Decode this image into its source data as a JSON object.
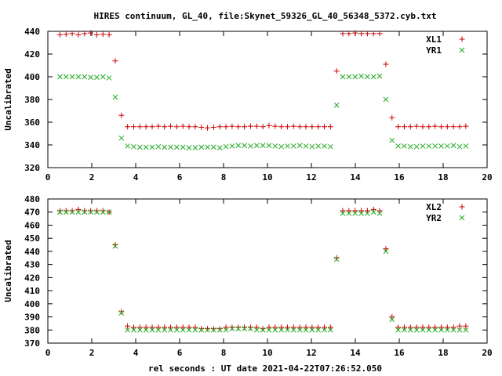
{
  "title": "HIRES continuum, GL_40, file:Skynet_59326_GL_40_56348_5372.cyb.txt",
  "xlabel": "rel seconds : UT date 2021-04-22T07:26:52.050",
  "colors": {
    "plus": "#cc0000",
    "cross": "#22aa22",
    "axis": "#000000"
  },
  "chart_data": [
    {
      "type": "scatter",
      "ylabel": "Uncalibrated",
      "xlim": [
        0,
        20
      ],
      "ylim": [
        320,
        440
      ],
      "xticks": [
        "0",
        "2",
        "4",
        "6",
        "8",
        "10",
        "12",
        "14",
        "16",
        "18",
        "20"
      ],
      "yticks": [
        "320",
        "340",
        "360",
        "380",
        "400",
        "420",
        "440"
      ],
      "legend_position": "top-right",
      "x": [
        0.55,
        0.83,
        1.11,
        1.39,
        1.67,
        1.95,
        2.23,
        2.51,
        2.79,
        3.07,
        3.35,
        3.63,
        3.91,
        4.19,
        4.47,
        4.75,
        5.03,
        5.31,
        5.59,
        5.87,
        6.15,
        6.43,
        6.71,
        6.99,
        7.27,
        7.55,
        7.83,
        8.11,
        8.39,
        8.67,
        8.95,
        9.23,
        9.51,
        9.79,
        10.07,
        10.35,
        10.63,
        10.91,
        11.19,
        11.47,
        11.75,
        12.03,
        12.31,
        12.59,
        12.87,
        13.15,
        13.43,
        13.71,
        13.99,
        14.27,
        14.55,
        14.83,
        15.11,
        15.39,
        15.67,
        15.95,
        16.23,
        16.51,
        16.79,
        17.07,
        17.35,
        17.63,
        17.91,
        18.19,
        18.47,
        18.75,
        19.03
      ],
      "series": [
        {
          "name": "XL1",
          "marker": "plus",
          "values": [
            437,
            437.5,
            438,
            437,
            438,
            438.5,
            437,
            437.5,
            437,
            414,
            366,
            356,
            356,
            356,
            356,
            356,
            356.5,
            356,
            356.5,
            356,
            356.5,
            356,
            356,
            355.5,
            355,
            355.5,
            356,
            356,
            356.5,
            356,
            356,
            356.5,
            356.5,
            356,
            357,
            356.5,
            356,
            356,
            356.5,
            356,
            356,
            356,
            356,
            356,
            356,
            405,
            438,
            438,
            438.5,
            438,
            438,
            438,
            438,
            411,
            364,
            356,
            356,
            356,
            356.5,
            356,
            356,
            356.5,
            356,
            356,
            356,
            356,
            356.5
          ]
        },
        {
          "name": "YR1",
          "marker": "cross",
          "values": [
            400,
            400,
            400,
            400,
            400,
            399.5,
            399.5,
            400,
            399,
            382,
            346,
            339,
            338.5,
            338,
            338,
            338,
            338.5,
            338,
            338,
            338,
            338,
            337.5,
            337.5,
            338,
            338,
            338,
            337.5,
            338.5,
            339,
            339.5,
            339.5,
            339,
            339.5,
            339.5,
            339.5,
            339,
            338.5,
            339,
            339,
            339.5,
            339,
            338.5,
            339,
            339,
            338.5,
            375,
            400,
            400,
            400,
            400.5,
            400,
            400,
            400.5,
            380,
            344,
            339,
            339,
            338.5,
            338.5,
            339,
            339,
            339,
            339,
            339,
            339.5,
            338.5,
            339
          ]
        }
      ]
    },
    {
      "type": "scatter",
      "ylabel": "Uncalibrated",
      "xlim": [
        0,
        20
      ],
      "ylim": [
        370,
        480
      ],
      "xticks": [
        "0",
        "2",
        "4",
        "6",
        "8",
        "10",
        "12",
        "14",
        "16",
        "18",
        "20"
      ],
      "yticks": [
        "370",
        "380",
        "390",
        "400",
        "410",
        "420",
        "430",
        "440",
        "450",
        "460",
        "470",
        "480"
      ],
      "legend_position": "top-right",
      "x": [
        0.55,
        0.83,
        1.11,
        1.39,
        1.67,
        1.95,
        2.23,
        2.51,
        2.79,
        3.07,
        3.35,
        3.63,
        3.91,
        4.19,
        4.47,
        4.75,
        5.03,
        5.31,
        5.59,
        5.87,
        6.15,
        6.43,
        6.71,
        6.99,
        7.27,
        7.55,
        7.83,
        8.11,
        8.39,
        8.67,
        8.95,
        9.23,
        9.51,
        9.79,
        10.07,
        10.35,
        10.63,
        10.91,
        11.19,
        11.47,
        11.75,
        12.03,
        12.31,
        12.59,
        12.87,
        13.15,
        13.43,
        13.71,
        13.99,
        14.27,
        14.55,
        14.83,
        15.11,
        15.39,
        15.67,
        15.95,
        16.23,
        16.51,
        16.79,
        17.07,
        17.35,
        17.63,
        17.91,
        18.19,
        18.47,
        18.75,
        19.03
      ],
      "series": [
        {
          "name": "XL2",
          "marker": "plus",
          "values": [
            471,
            471,
            471,
            472,
            471,
            471,
            471,
            471,
            470,
            445,
            394,
            383,
            382,
            382,
            382,
            382,
            382,
            382,
            382,
            382,
            382,
            382,
            382,
            381,
            381,
            381,
            381,
            382,
            382,
            382,
            382,
            382,
            382,
            381,
            382,
            382,
            382,
            382,
            382,
            382,
            382,
            382,
            382,
            382,
            382,
            435,
            471,
            471,
            471,
            471,
            471,
            472,
            471,
            442,
            390,
            382,
            382,
            382,
            382,
            382,
            382,
            382,
            382,
            382,
            382,
            383,
            383
          ]
        },
        {
          "name": "YR2",
          "marker": "cross",
          "values": [
            470,
            470,
            470,
            470,
            470,
            470,
            470,
            470,
            470,
            444,
            393,
            380,
            380,
            380,
            380,
            380,
            380,
            380,
            380,
            380,
            380,
            380,
            380,
            380,
            380,
            380,
            380,
            380,
            381,
            381,
            381,
            381,
            380,
            380,
            380,
            380,
            380,
            380,
            380,
            380,
            380,
            380,
            380,
            380,
            380,
            434,
            469,
            469,
            469,
            469,
            469,
            470,
            469,
            440,
            388,
            380,
            380,
            380,
            380,
            380,
            380,
            380,
            380,
            380,
            380,
            380,
            380
          ]
        }
      ]
    }
  ]
}
